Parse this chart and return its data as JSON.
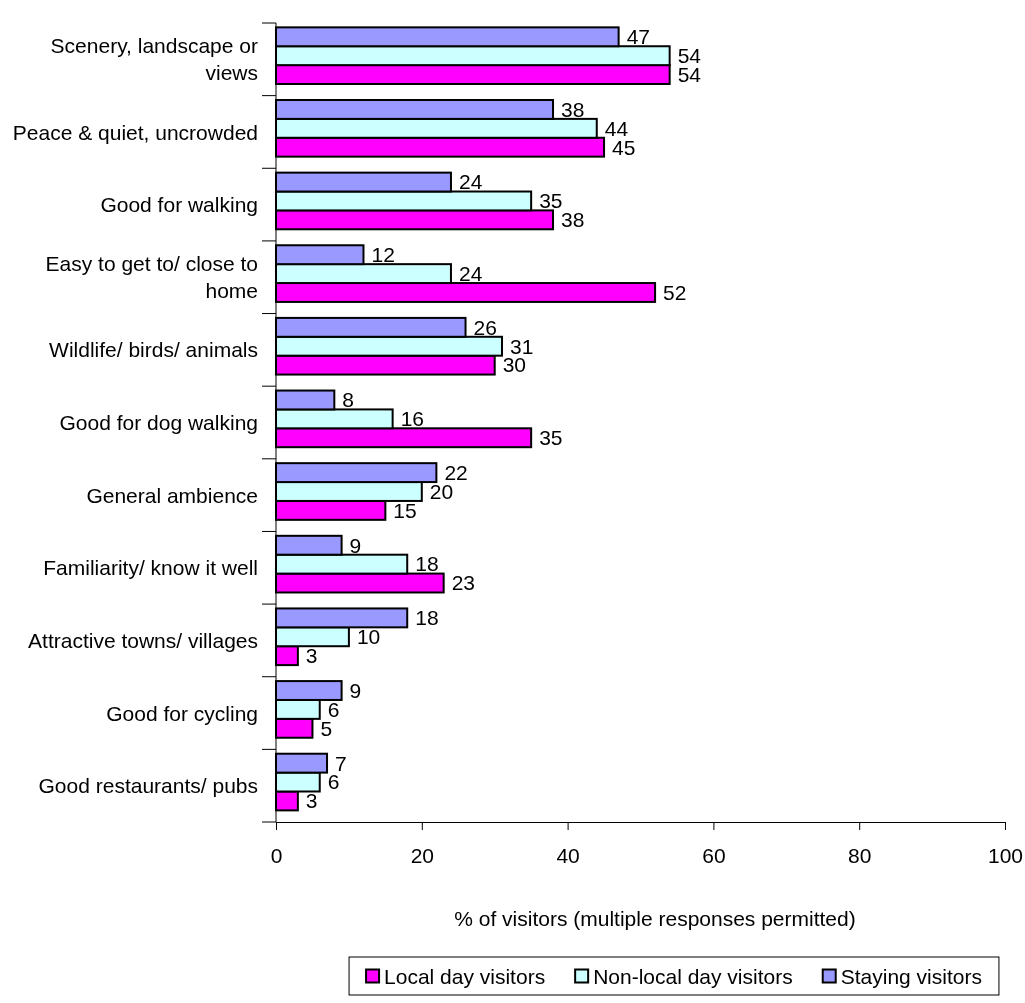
{
  "chart_data": {
    "type": "bar",
    "orientation": "horizontal",
    "categories": [
      "Scenery, landscape or views",
      "Peace & quiet, uncrowded",
      "Good for walking",
      "Easy to get to/ close to home",
      "Wildlife/ birds/ animals",
      "Good for dog walking",
      "General ambience",
      "Familiarity/ know it well",
      "Attractive towns/ villages",
      "Good for cycling",
      "Good restaurants/ pubs"
    ],
    "series": [
      {
        "name": "Local day visitors",
        "color": "#ff00ff",
        "values": [
          54,
          45,
          38,
          52,
          30,
          35,
          15,
          23,
          3,
          5,
          3
        ]
      },
      {
        "name": "Non-local day visitors",
        "color": "#ccffff",
        "values": [
          54,
          44,
          35,
          24,
          31,
          16,
          20,
          18,
          10,
          6,
          6
        ]
      },
      {
        "name": "Staying visitors",
        "color": "#9999ff",
        "values": [
          47,
          38,
          24,
          12,
          26,
          8,
          22,
          9,
          18,
          9,
          7
        ]
      }
    ],
    "xlim": [
      0,
      100
    ],
    "xticks": [
      0,
      20,
      40,
      60,
      80,
      100
    ],
    "xlabel": "% of visitors (multiple responses permitted)",
    "data_labels": true,
    "legend": "bottom"
  }
}
